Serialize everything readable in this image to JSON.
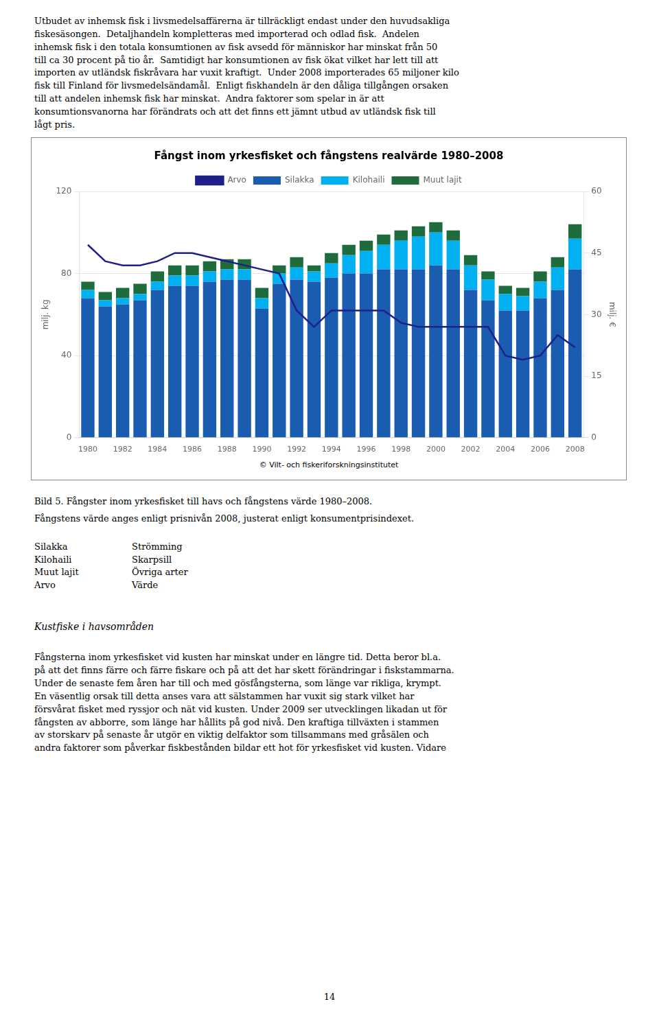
{
  "chart_data": {
    "type": "bar",
    "title": "Fångst inom yrkesfisket och fångstens realvärde 1980–2008",
    "y_label": "milj. kg",
    "y2_label": "milj. €",
    "stacked": true,
    "grid": true,
    "legend": "top",
    "categories": [
      "1980",
      null,
      "1982",
      null,
      "1984",
      null,
      "1986",
      null,
      "1988",
      null,
      "1990",
      null,
      "1992",
      null,
      "1994",
      null,
      "1996",
      null,
      "1998",
      null,
      "2000",
      null,
      "2002",
      null,
      "2004",
      null,
      "2006",
      null,
      "2008"
    ],
    "series": [
      {
        "name": "Silakka",
        "type": "bar",
        "color": "#1a5cb0",
        "values": [
          68,
          64,
          65,
          67,
          72,
          74,
          74,
          76,
          77,
          77,
          63,
          75,
          77,
          76,
          78,
          80,
          80,
          82,
          82,
          82,
          84,
          82,
          72,
          67,
          62,
          62,
          68,
          72,
          82
        ]
      },
      {
        "name": "Kilohaili",
        "type": "bar",
        "color": "#00b0f0",
        "values": [
          4,
          3,
          3,
          3,
          4,
          5,
          5,
          5,
          5,
          5,
          5,
          5,
          6,
          5,
          7,
          9,
          11,
          12,
          14,
          16,
          16,
          14,
          12,
          10,
          8,
          7,
          8,
          11,
          15
        ]
      },
      {
        "name": "Muut lajit",
        "type": "bar",
        "color": "#1e6b3c",
        "values": [
          4,
          4,
          5,
          5,
          5,
          5,
          5,
          5,
          5,
          5,
          5,
          4,
          5,
          3,
          5,
          5,
          5,
          5,
          5,
          5,
          5,
          5,
          5,
          4,
          4,
          4,
          5,
          5,
          7
        ]
      },
      {
        "name": "Arvo",
        "type": "line",
        "axis": "y2",
        "color": "#1f1f8a",
        "values": [
          47,
          43,
          42,
          42,
          43,
          45,
          45,
          44,
          43,
          42,
          41,
          40,
          31,
          27,
          31,
          31,
          31,
          31,
          28,
          27,
          27,
          27,
          27,
          27,
          20,
          19,
          20,
          25,
          22
        ]
      }
    ],
    "ylim": [
      0,
      120
    ],
    "yticks": [
      0,
      40,
      80,
      120
    ],
    "y2lim": [
      0,
      60
    ],
    "y2ticks": [
      0,
      15,
      30,
      45,
      60
    ],
    "annotations": [
      "Utbudet av inhemsk fisk i livsmedelsaffärerna är tillräckligt endast under den huvudsakliga\nfiskesäsongen.  Detaljhandeln kompletteras med importerad och odlad fisk.  Andelen\ninhemsk fisk i den totala konsumtionen av fisk avsedd för människor har minskat från 50\ntill ca 30 procent på tio år.  Samtidigt har konsumtionen av fisk ökat vilket har lett till att\nimporten av utländsk fiskråvara har vuxit kraftigt.  Under 2008 importerades 65 miljoner kilo\nfisk till Finland för livsmedelsändamål.  Enligt fiskhandeln är den dåliga tillgången orsaken\ntill att andelen inhemsk fisk har minskat.  Andra faktorer som spelar in är att\nkonsumtionsvanorna har förändrats och att det finns ett jämnt utbud av utländsk fisk till\nlågt pris.",
      "© Vilt- och fiskeriforskningsinstitutet",
      "Bild 5. Fångster inom yrkesfisket till havs och fångstens värde 1980–2008.",
      "Fångstens värde anges enligt prisnivån 2008, justerat enligt konsumentprisindexet.",
      [
        "Silakka",
        "Strömming"
      ],
      [
        "Kilohaili",
        "Skarpsill"
      ],
      [
        "Muut lajit",
        "Övriga arter"
      ],
      [
        "Arvo",
        "Värde"
      ],
      "Kustfiske i havsområden",
      "Fångsterna inom yrkesfisket vid kusten har minskat under en längre tid. Detta beror bl.a.\npå att det finns färre och färre fiskare och på att det har skett förändringar i fiskstammarna.\nUnder de senaste fem åren har till och med gösfångsterna, som länge var rikliga, krympt.\nEn väsentlig orsak till detta anses vara att sälstammen har vuxit sig stark vilket har\nförsvårat fisket med ryssjor och nät vid kusten. Under 2009 ser utvecklingen likadan ut för\nfångsten av abborre, som länge har hållits på god nivå. Den kraftiga tillväxten i stammen\nav storskarv på senaste år utgör en viktig delfaktor som tillsammans med gråsälen och\nandra faktorer som påverkar fiskbestånden bildar ett hot för yrkesfisket vid kusten. Vidare",
      "14"
    ]
  }
}
